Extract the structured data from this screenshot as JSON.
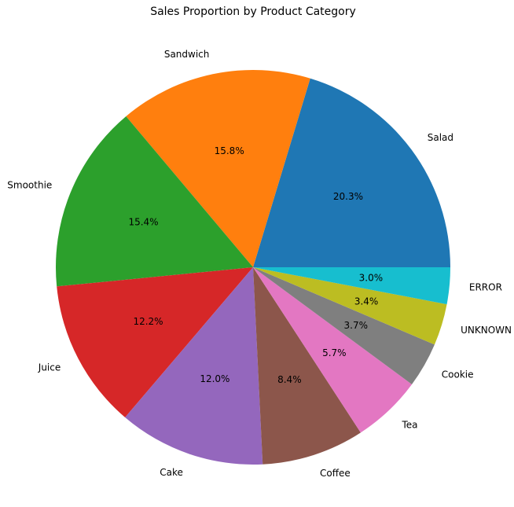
{
  "chart_data": {
    "type": "pie",
    "title": "Sales Proportion by Product Category",
    "categories": [
      "Salad",
      "Sandwich",
      "Smoothie",
      "Juice",
      "Cake",
      "Coffee",
      "Tea",
      "Cookie",
      "UNKNOWN",
      "ERROR"
    ],
    "values": [
      20.3,
      15.8,
      15.4,
      12.2,
      12.0,
      8.4,
      5.7,
      3.7,
      3.4,
      3.0
    ],
    "value_labels": [
      "20.3%",
      "15.8%",
      "15.4%",
      "12.2%",
      "12.0%",
      "8.4%",
      "5.7%",
      "3.7%",
      "3.4%",
      "3.0%"
    ],
    "colors": [
      "#1f77b4",
      "#ff7f0e",
      "#2ca02c",
      "#d62728",
      "#9467bd",
      "#8c564b",
      "#e377c2",
      "#7f7f7f",
      "#bcbd22",
      "#17becf"
    ],
    "start_angle_deg": 0,
    "direction": "counterclockwise",
    "legend": "none"
  }
}
